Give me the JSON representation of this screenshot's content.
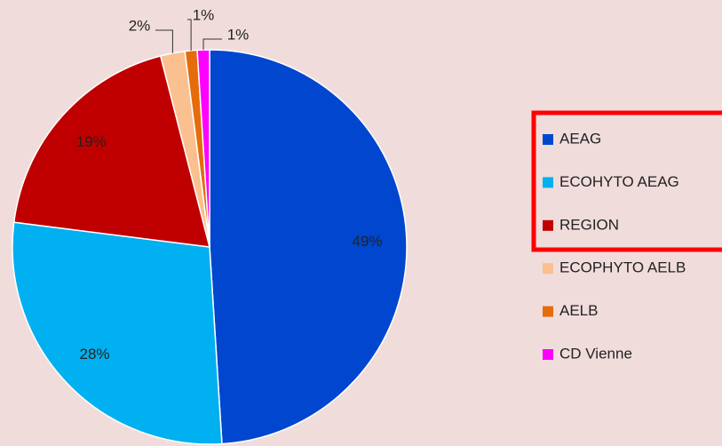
{
  "chart_data": {
    "type": "pie",
    "categories": [
      "AEAG",
      "ECOHYTO AEAG",
      "REGION",
      "ECOPHYTO AELB",
      "AELB",
      "CD Vienne"
    ],
    "values": [
      49,
      28,
      19,
      2,
      1,
      1
    ],
    "value_labels": [
      "49%",
      "28%",
      "19%",
      "2%",
      "1%",
      "1%"
    ],
    "colors": [
      "#0046cf",
      "#00b0f0",
      "#c00000",
      "#fac090",
      "#e46c0a",
      "#ff00ff"
    ],
    "legend": "right"
  }
}
